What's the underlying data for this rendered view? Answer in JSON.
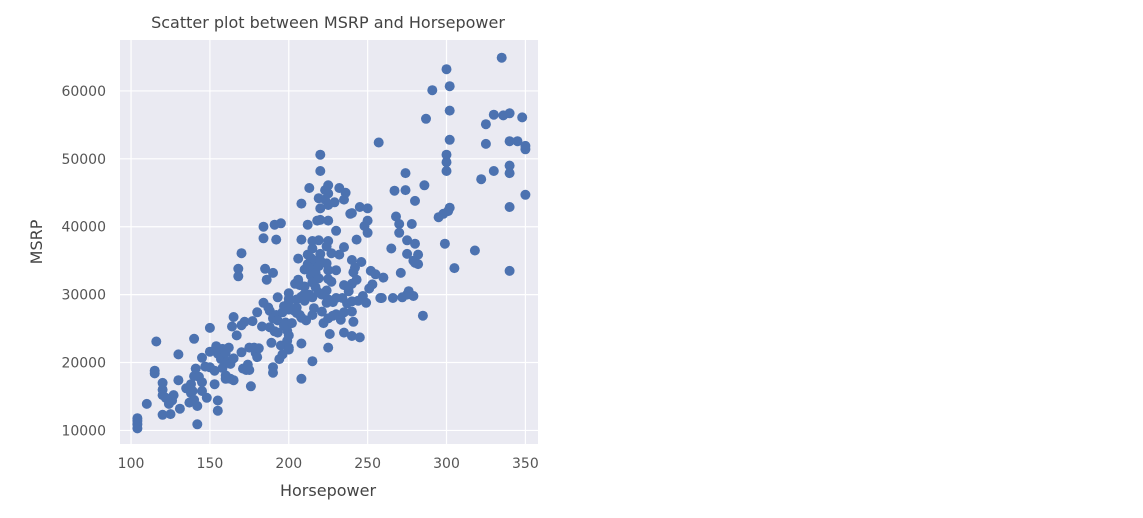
{
  "chart_data": {
    "type": "scatter",
    "title": "Scatter plot between MSRP and Horsepower",
    "xlabel": "Horsepower",
    "ylabel": "MSRP",
    "xlim": [
      93,
      358
    ],
    "ylim": [
      8000,
      67500
    ],
    "xticks": [
      100,
      150,
      200,
      250,
      300,
      350
    ],
    "yticks": [
      10000,
      20000,
      30000,
      40000,
      50000,
      60000
    ],
    "xtick_labels": [
      "100",
      "150",
      "200",
      "250",
      "300",
      "350"
    ],
    "ytick_labels": [
      "10000",
      "20000",
      "30000",
      "40000",
      "50000",
      "60000"
    ],
    "grid": true,
    "background": "#eaeaf2",
    "marker_color": "#4c72b0",
    "points": [
      [
        104,
        10300
      ],
      [
        104,
        10900
      ],
      [
        104,
        11400
      ],
      [
        104,
        11800
      ],
      [
        110,
        13900
      ],
      [
        116,
        23100
      ],
      [
        115,
        18800
      ],
      [
        115,
        18400
      ],
      [
        120,
        16000
      ],
      [
        120,
        17000
      ],
      [
        120,
        15200
      ],
      [
        120,
        12300
      ],
      [
        122,
        14800
      ],
      [
        124,
        13900
      ],
      [
        125,
        12400
      ],
      [
        126,
        14400
      ],
      [
        127,
        15200
      ],
      [
        130,
        21200
      ],
      [
        130,
        17400
      ],
      [
        131,
        13200
      ],
      [
        135,
        16200
      ],
      [
        137,
        14100
      ],
      [
        138,
        15500
      ],
      [
        138,
        16800
      ],
      [
        139,
        15800
      ],
      [
        140,
        14500
      ],
      [
        140,
        23500
      ],
      [
        140,
        18000
      ],
      [
        141,
        19100
      ],
      [
        142,
        13600
      ],
      [
        142,
        10900
      ],
      [
        143,
        17900
      ],
      [
        145,
        15800
      ],
      [
        145,
        20700
      ],
      [
        145,
        17100
      ],
      [
        147,
        19400
      ],
      [
        148,
        14800
      ],
      [
        150,
        21600
      ],
      [
        150,
        25100
      ],
      [
        150,
        19300
      ],
      [
        153,
        16800
      ],
      [
        153,
        18800
      ],
      [
        154,
        22400
      ],
      [
        155,
        22000
      ],
      [
        155,
        21300
      ],
      [
        155,
        14400
      ],
      [
        155,
        12900
      ],
      [
        157,
        20500
      ],
      [
        158,
        22000
      ],
      [
        158,
        19200
      ],
      [
        160,
        21400
      ],
      [
        160,
        17600
      ],
      [
        160,
        18100
      ],
      [
        161,
        20100
      ],
      [
        162,
        22200
      ],
      [
        163,
        17600
      ],
      [
        163,
        19800
      ],
      [
        164,
        25300
      ],
      [
        165,
        26700
      ],
      [
        165,
        20600
      ],
      [
        165,
        17400
      ],
      [
        167,
        24000
      ],
      [
        168,
        33800
      ],
      [
        168,
        32700
      ],
      [
        170,
        36100
      ],
      [
        170,
        25500
      ],
      [
        170,
        21500
      ],
      [
        171,
        19100
      ],
      [
        172,
        26000
      ],
      [
        173,
        18900
      ],
      [
        174,
        19700
      ],
      [
        175,
        18900
      ],
      [
        175,
        22200
      ],
      [
        176,
        16500
      ],
      [
        177,
        26100
      ],
      [
        178,
        22200
      ],
      [
        179,
        21400
      ],
      [
        180,
        20800
      ],
      [
        180,
        27400
      ],
      [
        181,
        22100
      ],
      [
        183,
        25300
      ],
      [
        184,
        28800
      ],
      [
        184,
        40000
      ],
      [
        184,
        38300
      ],
      [
        185,
        33800
      ],
      [
        186,
        32200
      ],
      [
        187,
        28100
      ],
      [
        188,
        27600
      ],
      [
        188,
        25200
      ],
      [
        189,
        22900
      ],
      [
        190,
        33200
      ],
      [
        190,
        26500
      ],
      [
        190,
        18500
      ],
      [
        190,
        19300
      ],
      [
        191,
        40300
      ],
      [
        191,
        24600
      ],
      [
        192,
        38100
      ],
      [
        192,
        27000
      ],
      [
        193,
        26200
      ],
      [
        193,
        29600
      ],
      [
        193,
        24400
      ],
      [
        194,
        20500
      ],
      [
        195,
        40500
      ],
      [
        195,
        22500
      ],
      [
        196,
        27400
      ],
      [
        196,
        21200
      ],
      [
        197,
        25400
      ],
      [
        197,
        28300
      ],
      [
        198,
        25900
      ],
      [
        199,
        24700
      ],
      [
        199,
        23200
      ],
      [
        200,
        22200
      ],
      [
        200,
        27800
      ],
      [
        200,
        30200
      ],
      [
        200,
        28900
      ],
      [
        200,
        29400
      ],
      [
        200,
        21900
      ],
      [
        200,
        24000
      ],
      [
        202,
        25800
      ],
      [
        203,
        27700
      ],
      [
        204,
        31600
      ],
      [
        205,
        27300
      ],
      [
        205,
        28100
      ],
      [
        205,
        29300
      ],
      [
        206,
        32200
      ],
      [
        206,
        35300
      ],
      [
        207,
        31400
      ],
      [
        207,
        27000
      ],
      [
        208,
        43400
      ],
      [
        208,
        38100
      ],
      [
        208,
        29700
      ],
      [
        208,
        26600
      ],
      [
        208,
        22800
      ],
      [
        208,
        17600
      ],
      [
        210,
        31200
      ],
      [
        210,
        30100
      ],
      [
        210,
        33700
      ],
      [
        210,
        29100
      ],
      [
        211,
        26200
      ],
      [
        212,
        40300
      ],
      [
        212,
        35900
      ],
      [
        212,
        34500
      ],
      [
        213,
        30000
      ],
      [
        213,
        45700
      ],
      [
        214,
        35400
      ],
      [
        214,
        32800
      ],
      [
        215,
        37900
      ],
      [
        215,
        36800
      ],
      [
        215,
        33100
      ],
      [
        215,
        31800
      ],
      [
        215,
        29600
      ],
      [
        215,
        27000
      ],
      [
        215,
        20200
      ],
      [
        216,
        34000
      ],
      [
        216,
        28000
      ],
      [
        217,
        35000
      ],
      [
        217,
        33200
      ],
      [
        217,
        31100
      ],
      [
        218,
        40900
      ],
      [
        219,
        44200
      ],
      [
        219,
        38000
      ],
      [
        219,
        34200
      ],
      [
        219,
        32400
      ],
      [
        219,
        30300
      ],
      [
        220,
        50600
      ],
      [
        220,
        48200
      ],
      [
        220,
        42700
      ],
      [
        220,
        41000
      ],
      [
        220,
        36000
      ],
      [
        220,
        35000
      ],
      [
        221,
        30000
      ],
      [
        221,
        27500
      ],
      [
        222,
        25800
      ],
      [
        223,
        45400
      ],
      [
        223,
        44000
      ],
      [
        224,
        37100
      ],
      [
        224,
        34600
      ],
      [
        224,
        30600
      ],
      [
        224,
        28800
      ],
      [
        225,
        46100
      ],
      [
        225,
        44900
      ],
      [
        225,
        43200
      ],
      [
        225,
        40900
      ],
      [
        225,
        37900
      ],
      [
        225,
        33600
      ],
      [
        225,
        32300
      ],
      [
        225,
        29300
      ],
      [
        225,
        26500
      ],
      [
        225,
        22200
      ],
      [
        226,
        24200
      ],
      [
        227,
        36100
      ],
      [
        227,
        31900
      ],
      [
        228,
        28900
      ],
      [
        228,
        26900
      ],
      [
        229,
        43600
      ],
      [
        230,
        39400
      ],
      [
        230,
        33600
      ],
      [
        230,
        29500
      ],
      [
        230,
        27100
      ],
      [
        232,
        45700
      ],
      [
        232,
        35900
      ],
      [
        233,
        26300
      ],
      [
        234,
        29500
      ],
      [
        235,
        44000
      ],
      [
        235,
        37000
      ],
      [
        235,
        31400
      ],
      [
        235,
        27400
      ],
      [
        235,
        24400
      ],
      [
        236,
        45000
      ],
      [
        237,
        28700
      ],
      [
        238,
        30500
      ],
      [
        239,
        41900
      ],
      [
        240,
        42000
      ],
      [
        240,
        35100
      ],
      [
        240,
        31600
      ],
      [
        240,
        29000
      ],
      [
        240,
        27500
      ],
      [
        240,
        23900
      ],
      [
        241,
        33300
      ],
      [
        241,
        26000
      ],
      [
        242,
        34000
      ],
      [
        243,
        38100
      ],
      [
        243,
        32200
      ],
      [
        244,
        29100
      ],
      [
        245,
        23700
      ],
      [
        245,
        42900
      ],
      [
        246,
        34800
      ],
      [
        247,
        29800
      ],
      [
        248,
        40100
      ],
      [
        249,
        28800
      ],
      [
        250,
        40900
      ],
      [
        250,
        42700
      ],
      [
        250,
        39100
      ],
      [
        251,
        30900
      ],
      [
        252,
        33500
      ],
      [
        253,
        31500
      ],
      [
        255,
        33000
      ],
      [
        257,
        52400
      ],
      [
        258,
        29500
      ],
      [
        259,
        29500
      ],
      [
        260,
        32500
      ],
      [
        265,
        36800
      ],
      [
        266,
        29500
      ],
      [
        267,
        45300
      ],
      [
        268,
        41500
      ],
      [
        270,
        40400
      ],
      [
        270,
        39100
      ],
      [
        271,
        33200
      ],
      [
        272,
        29600
      ],
      [
        274,
        47900
      ],
      [
        274,
        45400
      ],
      [
        275,
        38000
      ],
      [
        275,
        36000
      ],
      [
        275,
        30000
      ],
      [
        276,
        30500
      ],
      [
        278,
        40400
      ],
      [
        279,
        29800
      ],
      [
        279,
        35000
      ],
      [
        280,
        37500
      ],
      [
        280,
        43800
      ],
      [
        280,
        34700
      ],
      [
        282,
        35900
      ],
      [
        282,
        34500
      ],
      [
        285,
        26900
      ],
      [
        286,
        46100
      ],
      [
        287,
        55900
      ],
      [
        291,
        60100
      ],
      [
        295,
        41400
      ],
      [
        298,
        41900
      ],
      [
        299,
        37500
      ],
      [
        300,
        63200
      ],
      [
        300,
        50600
      ],
      [
        300,
        49500
      ],
      [
        300,
        48200
      ],
      [
        301,
        42300
      ],
      [
        302,
        60700
      ],
      [
        302,
        57100
      ],
      [
        302,
        52800
      ],
      [
        302,
        42800
      ],
      [
        305,
        33900
      ],
      [
        318,
        36500
      ],
      [
        322,
        47000
      ],
      [
        325,
        55100
      ],
      [
        325,
        52200
      ],
      [
        330,
        56500
      ],
      [
        330,
        48200
      ],
      [
        335,
        64900
      ],
      [
        336,
        56400
      ],
      [
        340,
        56700
      ],
      [
        340,
        52600
      ],
      [
        340,
        49000
      ],
      [
        340,
        47900
      ],
      [
        340,
        42900
      ],
      [
        340,
        33500
      ],
      [
        345,
        52600
      ],
      [
        348,
        56100
      ],
      [
        350,
        51900
      ],
      [
        350,
        51400
      ],
      [
        350,
        44700
      ]
    ]
  }
}
